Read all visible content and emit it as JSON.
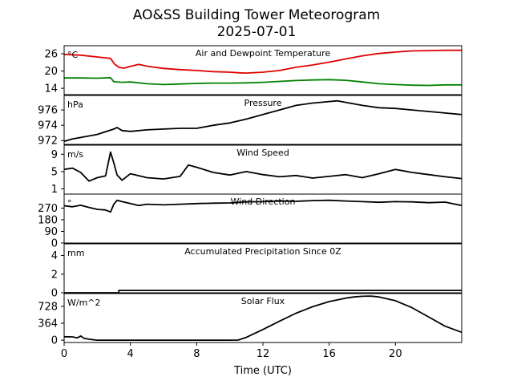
{
  "chart_data": {
    "type": "line",
    "title": "AO&SS Building Tower Meteorogram",
    "subtitle": "2025-07-01",
    "xlabel": "Time (UTC)",
    "xlim": [
      0,
      24
    ],
    "xticks": [
      0,
      4,
      8,
      12,
      16,
      20
    ],
    "grid": false,
    "panels": [
      {
        "title": "Air and Dewpoint Temperature",
        "unit": "°C",
        "ylim": [
          11.8,
          28.8
        ],
        "yticks": [
          14,
          20,
          26
        ],
        "series": [
          {
            "color": "#e00000",
            "x": [
              0,
              1,
              2,
              2.8,
              3.05,
              3.3,
              3.6,
              4,
              4.5,
              5,
              6,
              7,
              8,
              9,
              10,
              10.5,
              11,
              12,
              13,
              14,
              15,
              16,
              17,
              18,
              19,
              20,
              21,
              22,
              23,
              24
            ],
            "y": [
              25.8,
              25.5,
              24.9,
              24.4,
              22.4,
              21.3,
              21.0,
              21.6,
              22.3,
              21.7,
              20.9,
              20.5,
              20.2,
              19.8,
              19.6,
              19.4,
              19.3,
              19.6,
              20.2,
              21.3,
              22.1,
              23.1,
              24.2,
              25.3,
              26.1,
              26.6,
              27.0,
              27.1,
              27.2,
              27.2
            ]
          },
          {
            "color": "#008000",
            "x": [
              0,
              1,
              2,
              2.8,
              3.0,
              3.5,
              4,
              5,
              6,
              7,
              8,
              9,
              10,
              11,
              12,
              13,
              14,
              15,
              16,
              17,
              18,
              19,
              20,
              21,
              22,
              23,
              24
            ],
            "y": [
              17.6,
              17.6,
              17.5,
              17.7,
              16.3,
              16.1,
              16.2,
              15.6,
              15.3,
              15.5,
              15.7,
              15.8,
              15.8,
              15.9,
              16.1,
              16.4,
              16.7,
              16.9,
              17.0,
              16.8,
              16.2,
              15.6,
              15.3,
              15.1,
              15.0,
              15.2,
              15.2
            ]
          }
        ]
      },
      {
        "title": "Pressure",
        "unit": "hPa",
        "ylim": [
          971.5,
          977.9
        ],
        "yticks": [
          972,
          974,
          976
        ],
        "series": [
          {
            "color": "#000000",
            "x": [
              0,
              0.5,
              1,
              2,
              3,
              3.2,
              3.5,
              4,
              5,
              6,
              7,
              8,
              9,
              10,
              11,
              12,
              13,
              14,
              15,
              16,
              16.5,
              17,
              18,
              19,
              20,
              21,
              22,
              23,
              24
            ],
            "y": [
              971.9,
              972.2,
              972.4,
              972.8,
              973.5,
              973.7,
              973.3,
              973.2,
              973.4,
              973.5,
              973.6,
              973.6,
              974.0,
              974.3,
              974.8,
              975.4,
              976.0,
              976.6,
              976.9,
              977.1,
              977.2,
              977.0,
              976.6,
              976.3,
              976.2,
              976.0,
              975.8,
              975.6,
              975.4
            ]
          }
        ]
      },
      {
        "title": "Wind Speed",
        "unit": "m/s",
        "ylim": [
          -0.2,
          11.1
        ],
        "yticks": [
          1,
          5,
          9
        ],
        "series": [
          {
            "color": "#000000",
            "x": [
              0,
              0.5,
              1,
              1.5,
              2,
              2.5,
              2.8,
              3.0,
              3.2,
              3.5,
              4,
              5,
              6,
              7,
              7.5,
              8,
              9,
              10,
              11,
              12,
              13,
              14,
              15,
              16,
              17,
              18,
              19,
              20,
              21,
              22,
              23,
              24
            ],
            "y": [
              5.5,
              5.8,
              4.8,
              2.8,
              3.6,
              4.0,
              9.5,
              7.0,
              4.2,
              3.0,
              4.5,
              3.6,
              3.3,
              3.9,
              6.5,
              6.0,
              4.8,
              4.2,
              5.0,
              4.3,
              3.8,
              4.1,
              3.5,
              3.9,
              4.3,
              3.6,
              4.5,
              5.5,
              4.8,
              4.3,
              3.8,
              3.4
            ]
          }
        ]
      },
      {
        "title": "Wind Direction",
        "unit": "°",
        "ylim": [
          0,
          378
        ],
        "yticks": [
          0,
          90,
          180,
          270
        ],
        "series": [
          {
            "color": "#000000",
            "x": [
              0,
              0.5,
              1,
              1.5,
              2,
              2.5,
              2.8,
              3.0,
              3.2,
              3.5,
              4,
              4.5,
              5,
              6,
              7,
              8,
              9,
              10,
              11,
              12,
              13,
              14,
              15,
              16,
              17,
              18,
              19,
              20,
              21,
              22,
              23,
              24
            ],
            "y": [
              288,
              280,
              292,
              275,
              260,
              255,
              240,
              300,
              330,
              320,
              305,
              290,
              300,
              295,
              300,
              305,
              308,
              310,
              318,
              320,
              325,
              322,
              328,
              330,
              325,
              320,
              315,
              320,
              318,
              312,
              316,
              290
            ]
          }
        ]
      },
      {
        "title": "Accumulated Precipitation Since 0Z",
        "unit": "mm",
        "ylim": [
          0,
          5.25
        ],
        "yticks": [
          0,
          2,
          4
        ],
        "series": [
          {
            "color": "#000000",
            "x": [
              0,
              3.3,
              3.3,
              24
            ],
            "y": [
              0,
              0,
              0.25,
              0.25
            ]
          }
        ]
      },
      {
        "title": "Solar Flux",
        "unit": "W/m^2",
        "ylim": [
          -50,
          1003
        ],
        "yticks": [
          0,
          364,
          728
        ],
        "series": [
          {
            "color": "#000000",
            "x": [
              0,
              0.5,
              0.8,
              1.0,
              1.2,
              1.6,
              2,
              4,
              6,
              8,
              10,
              10.5,
              11,
              12,
              13,
              14,
              15,
              16,
              17,
              17.5,
              18,
              18.5,
              19,
              20,
              21,
              22,
              23,
              24
            ],
            "y": [
              75,
              70,
              50,
              90,
              40,
              15,
              0,
              0,
              0,
              0,
              0,
              2,
              60,
              230,
              410,
              580,
              720,
              830,
              905,
              930,
              945,
              950,
              930,
              850,
              700,
              500,
              300,
              170
            ]
          }
        ]
      }
    ]
  }
}
